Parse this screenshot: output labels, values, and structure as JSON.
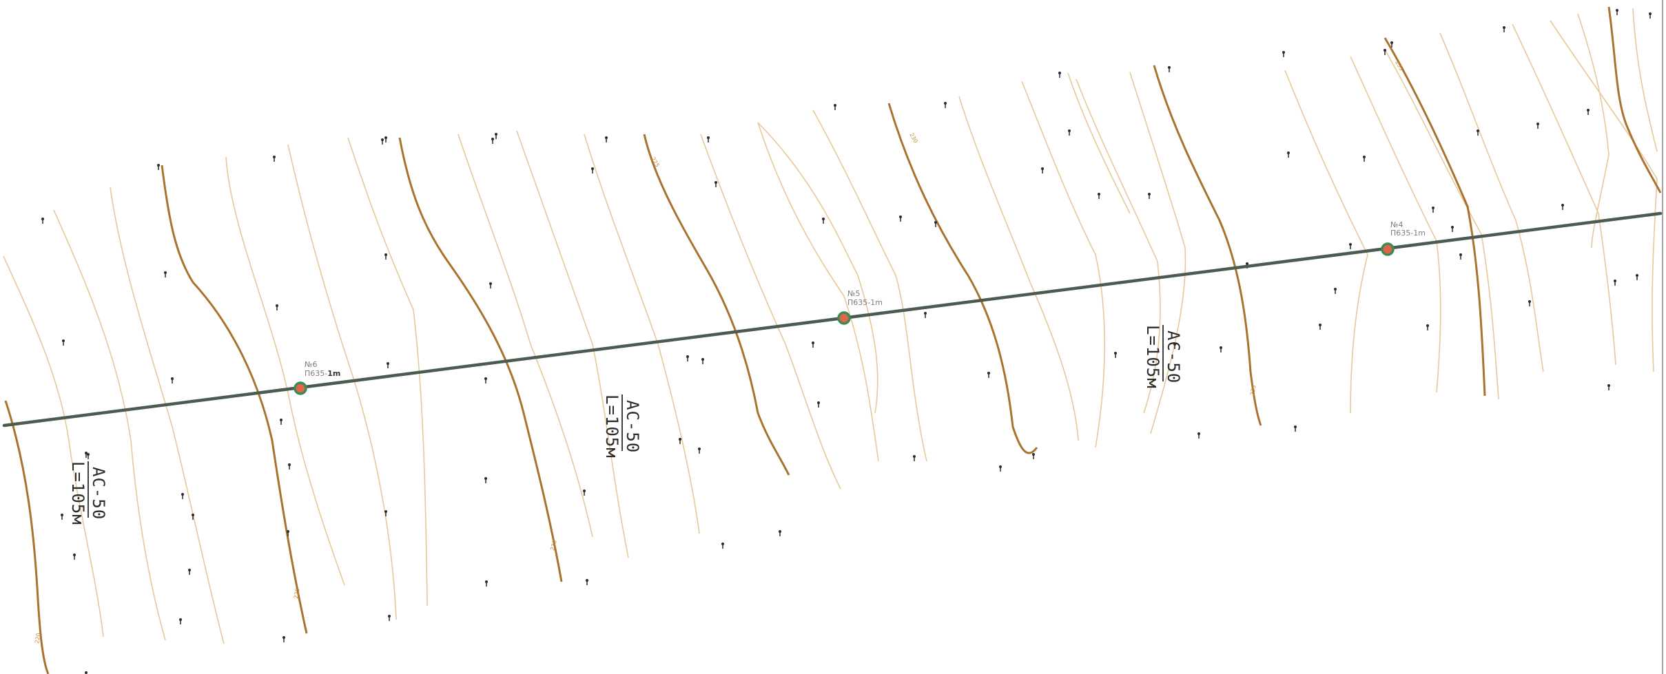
{
  "map": {
    "poles": [
      {
        "number": "№6",
        "code": "П635-",
        "suffix": "1m"
      },
      {
        "number": "№5",
        "code": "П635-1m",
        "suffix": ""
      },
      {
        "number": "№4",
        "code": "П635-1m",
        "suffix": ""
      }
    ],
    "wire_labels": [
      {
        "cable": "АС-50",
        "length": "L=105м"
      },
      {
        "cable": "АС-50",
        "length": "L=105м"
      },
      {
        "cable": "АС-50",
        "length": "L=105м"
      }
    ],
    "colors": {
      "contour_minor": "#e8c89a",
      "contour_major": "#a9732f",
      "power_line": "#4b5b50",
      "pole_fill": "#e0664b",
      "pole_ring": "#3f8a52"
    }
  }
}
